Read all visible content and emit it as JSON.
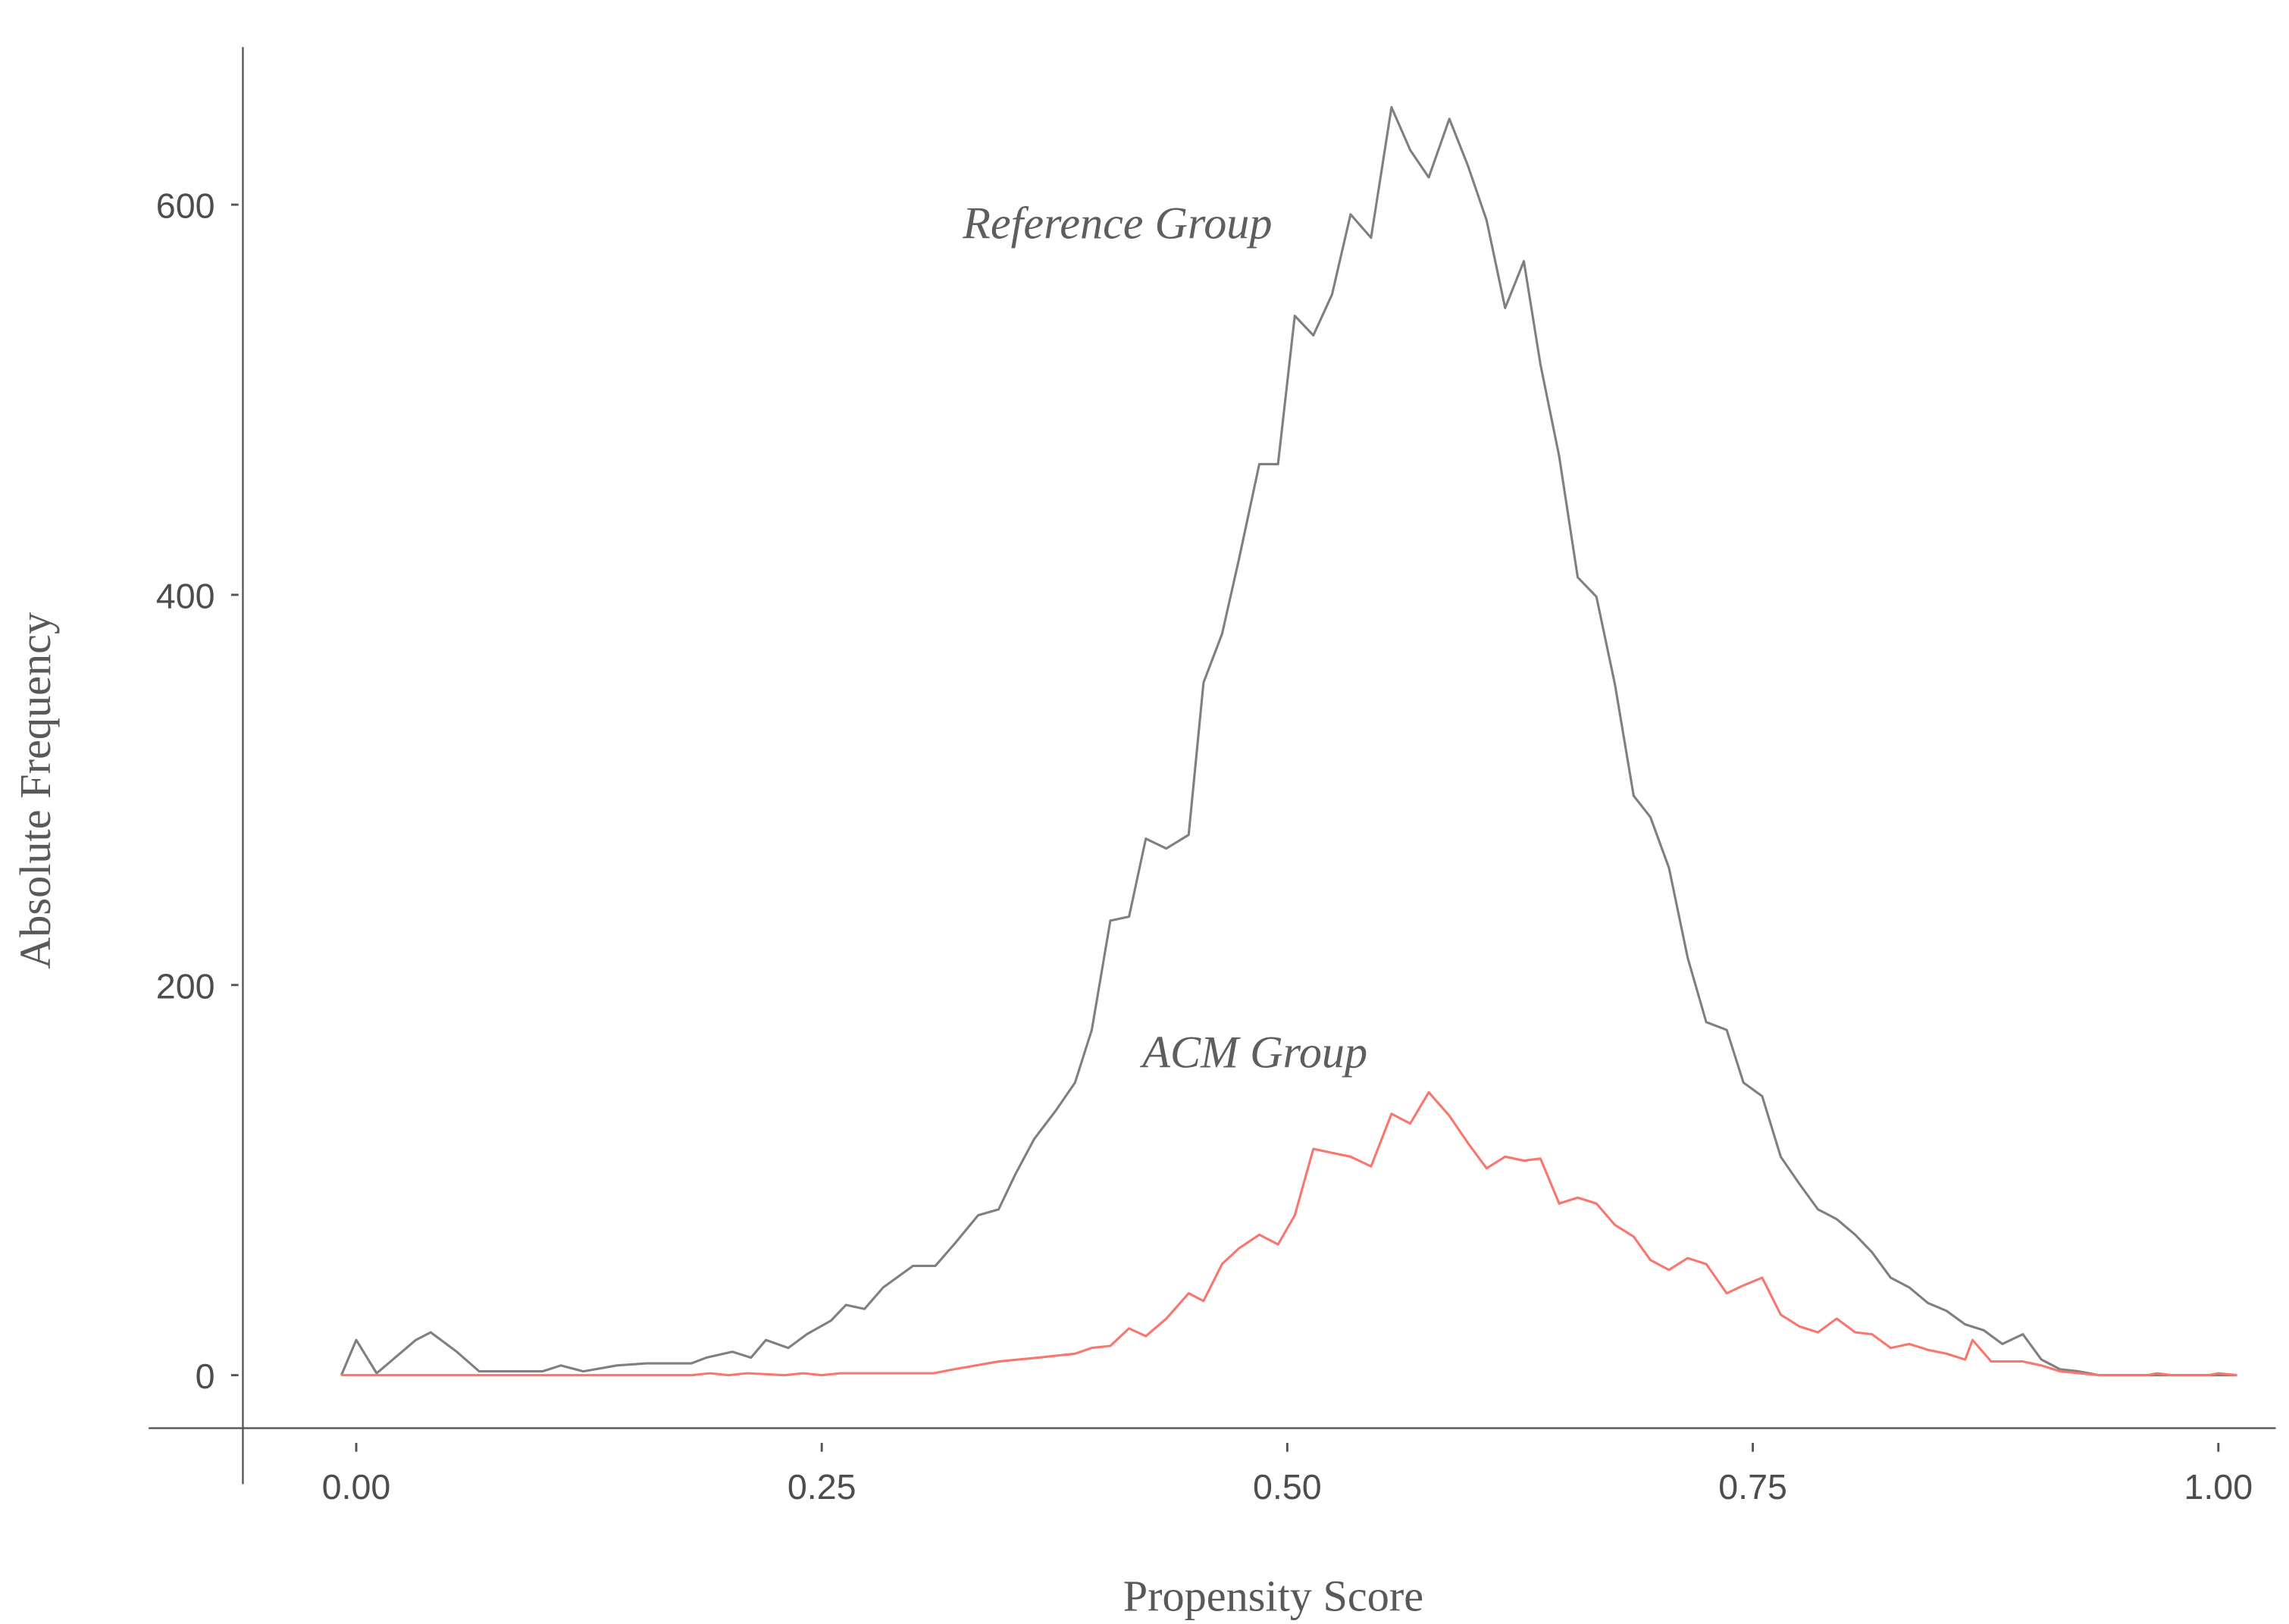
{
  "chart_data": {
    "type": "line",
    "title": "",
    "xlabel": "Propensity Score",
    "ylabel": "Absolute Frequency",
    "xlim": [
      -0.01,
      1.01
    ],
    "ylim": [
      -27,
      680
    ],
    "x_ticks": [
      "0.00",
      "0.25",
      "0.50",
      "0.75",
      "1.00"
    ],
    "x_tick_values": [
      0,
      0.25,
      0.5,
      0.75,
      1.0
    ],
    "y_ticks": [
      "0",
      "200",
      "400",
      "600"
    ],
    "y_tick_values": [
      0,
      200,
      400,
      600
    ],
    "grid": false,
    "legend": "none (direct labels)",
    "annotations": [
      {
        "text": "Reference Group",
        "x": 0.425,
        "y": 590,
        "series": "Reference Group"
      },
      {
        "text": "ACM Group",
        "x": 0.495,
        "y": 165,
        "series": "ACM Group"
      }
    ],
    "series": [
      {
        "name": "Reference Group",
        "color": "#7f7f7f",
        "x": [
          -0.008,
          0.0,
          0.011,
          0.032,
          0.04,
          0.054,
          0.066,
          0.1,
          0.11,
          0.122,
          0.14,
          0.156,
          0.18,
          0.188,
          0.202,
          0.212,
          0.22,
          0.232,
          0.242,
          0.255,
          0.263,
          0.273,
          0.283,
          0.299,
          0.311,
          0.321,
          0.334,
          0.345,
          0.354,
          0.364,
          0.376,
          0.386,
          0.395,
          0.405,
          0.415,
          0.424,
          0.435,
          0.447,
          0.455,
          0.465,
          0.474,
          0.485,
          0.495,
          0.504,
          0.514,
          0.524,
          0.534,
          0.545,
          0.556,
          0.566,
          0.576,
          0.587,
          0.597,
          0.607,
          0.617,
          0.627,
          0.636,
          0.646,
          0.656,
          0.666,
          0.676,
          0.686,
          0.695,
          0.705,
          0.715,
          0.725,
          0.736,
          0.745,
          0.755,
          0.765,
          0.775,
          0.785,
          0.795,
          0.805,
          0.814,
          0.824,
          0.834,
          0.844,
          0.854,
          0.864,
          0.874,
          0.884,
          0.895,
          0.905,
          0.915,
          0.925,
          0.936,
          1.01
        ],
        "values": [
          0,
          18,
          1,
          18,
          22,
          12,
          2,
          2,
          5,
          2,
          5,
          6,
          6,
          9,
          12,
          9,
          18,
          14,
          21,
          28,
          36,
          34,
          45,
          56,
          56,
          67,
          82,
          85,
          103,
          121,
          136,
          150,
          177,
          233,
          235,
          275,
          270,
          277,
          355,
          380,
          418,
          467,
          467,
          543,
          533,
          554,
          595,
          583,
          650,
          628,
          614,
          644,
          620,
          592,
          547,
          571,
          518,
          471,
          409,
          399,
          354,
          297,
          286,
          260,
          214,
          181,
          177,
          150,
          143,
          112,
          98,
          85,
          80,
          72,
          63,
          50,
          45,
          37,
          33,
          26,
          23,
          16,
          21,
          8,
          3,
          2,
          0,
          0
        ]
      },
      {
        "name": "ACM Group",
        "color": "#f8766d",
        "x": [
          -0.008,
          0.18,
          0.19,
          0.2,
          0.21,
          0.23,
          0.24,
          0.25,
          0.26,
          0.27,
          0.31,
          0.321,
          0.345,
          0.366,
          0.386,
          0.395,
          0.405,
          0.415,
          0.424,
          0.435,
          0.447,
          0.455,
          0.465,
          0.474,
          0.485,
          0.495,
          0.504,
          0.514,
          0.524,
          0.534,
          0.545,
          0.556,
          0.566,
          0.576,
          0.587,
          0.597,
          0.607,
          0.617,
          0.627,
          0.636,
          0.646,
          0.656,
          0.666,
          0.676,
          0.686,
          0.695,
          0.705,
          0.715,
          0.725,
          0.736,
          0.745,
          0.755,
          0.765,
          0.775,
          0.785,
          0.795,
          0.805,
          0.814,
          0.824,
          0.834,
          0.844,
          0.854,
          0.864,
          0.868,
          0.878,
          0.895,
          0.905,
          0.915,
          0.936,
          0.962,
          0.967,
          0.975,
          0.995,
          1.0,
          1.01
        ],
        "values": [
          0,
          0,
          1,
          0,
          1,
          0,
          1,
          0,
          1,
          1,
          1,
          3,
          7,
          9,
          11,
          14,
          15,
          24,
          20,
          29,
          42,
          38,
          57,
          65,
          72,
          67,
          82,
          116,
          114,
          112,
          107,
          134,
          129,
          145,
          133,
          119,
          106,
          112,
          110,
          111,
          88,
          91,
          88,
          77,
          71,
          59,
          54,
          60,
          57,
          42,
          46,
          50,
          31,
          25,
          22,
          29,
          22,
          21,
          14,
          16,
          13,
          11,
          8,
          18,
          7,
          7,
          5,
          2,
          0,
          0,
          1,
          0,
          0,
          1,
          0
        ]
      }
    ]
  },
  "axes": {
    "x_title": "Propensity Score",
    "y_title": "Absolute Frequency"
  },
  "labels": {
    "reference": "Reference Group",
    "acm": "ACM Group"
  }
}
